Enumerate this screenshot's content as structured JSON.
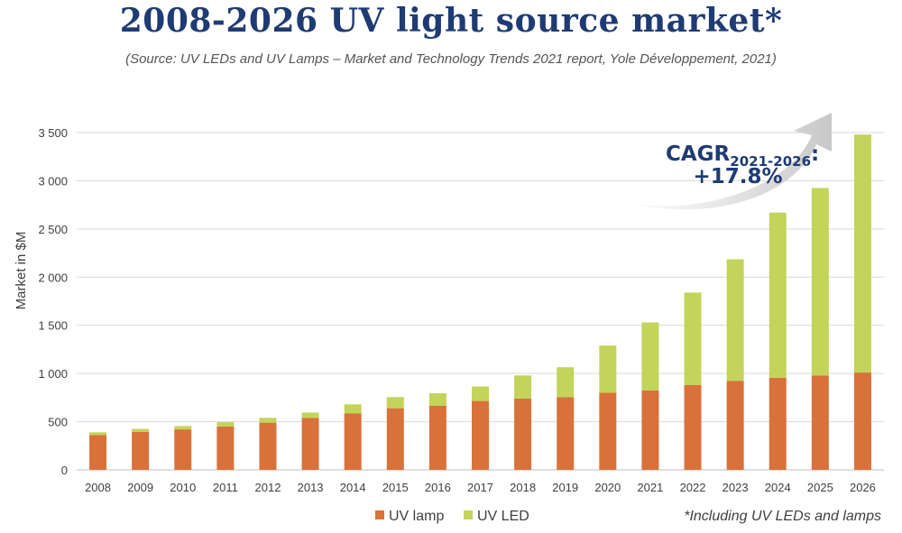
{
  "header": {
    "title": "2008-2026 UV light source market*",
    "subtitle": "(Source: UV LEDs and UV Lamps – Market and Technology Trends 2021 report, Yole Développement, 2021)"
  },
  "annotation": {
    "cagr_main": "CAGR",
    "cagr_sub": "2021-2026",
    "cagr_colon": ":",
    "cagr_value": "+17.8%"
  },
  "footnote": "*Including UV LEDs and lamps",
  "colors": {
    "uv_lamp": "#d9713a",
    "uv_led": "#c3d45a",
    "title": "#1f3b73",
    "grid": "#d9d9d9",
    "arrow": "#d0d0d0"
  },
  "chart_data": {
    "type": "bar",
    "stacked": true,
    "categories": [
      "2008",
      "2009",
      "2010",
      "2011",
      "2012",
      "2013",
      "2014",
      "2015",
      "2016",
      "2017",
      "2018",
      "2019",
      "2020",
      "2021",
      "2022",
      "2023",
      "2024",
      "2025",
      "2026"
    ],
    "series": [
      {
        "name": "UV lamp",
        "values": [
          360,
          395,
          420,
          450,
          490,
          540,
          585,
          640,
          665,
          715,
          740,
          755,
          800,
          825,
          880,
          925,
          955,
          980,
          1010
        ]
      },
      {
        "name": "UV LED",
        "values": [
          30,
          30,
          35,
          45,
          50,
          55,
          95,
          115,
          130,
          150,
          240,
          310,
          490,
          705,
          960,
          1260,
          1715,
          1945,
          2470
        ]
      }
    ],
    "ylabel": "Market in $M",
    "ylim": [
      0,
      3500
    ],
    "yticks": [
      0,
      500,
      1000,
      1500,
      2000,
      2500,
      3000,
      3500
    ],
    "ytick_labels": [
      "0",
      "500",
      "1 000",
      "1 500",
      "2 000",
      "2 500",
      "3 000",
      "3 500"
    ],
    "grid": true,
    "legend_position": "bottom"
  }
}
